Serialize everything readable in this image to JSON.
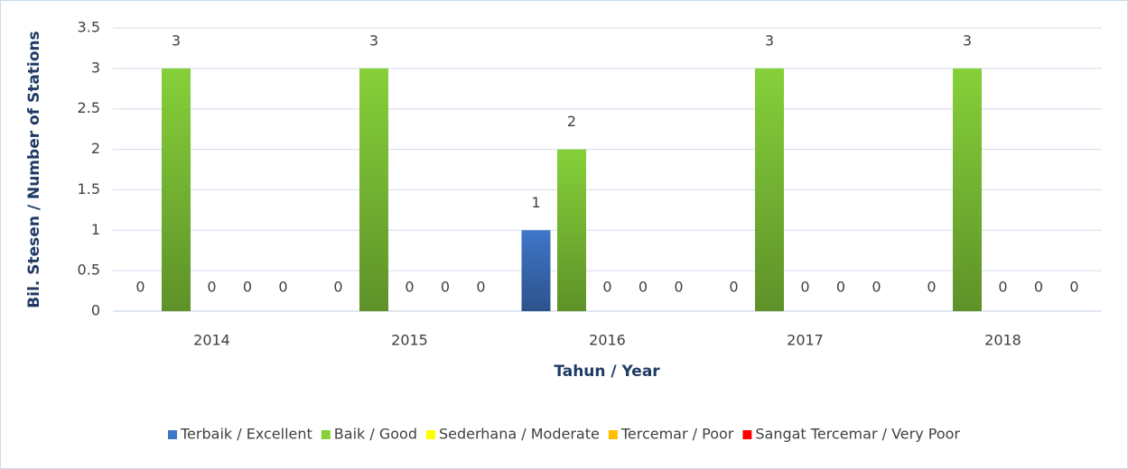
{
  "chart_data": {
    "type": "bar",
    "categories": [
      "2014",
      "2015",
      "2016",
      "2017",
      "2018"
    ],
    "series": [
      {
        "name": "Terbaik / Excellent",
        "color": "#3f76c8",
        "values": [
          0,
          0,
          1,
          0,
          0
        ]
      },
      {
        "name": "Baik / Good",
        "color": "#86d03a",
        "values": [
          3,
          3,
          2,
          3,
          3
        ]
      },
      {
        "name": "Sederhana / Moderate",
        "color": "#ffff00",
        "values": [
          0,
          0,
          0,
          0,
          0
        ]
      },
      {
        "name": "Tercemar / Poor",
        "color": "#ffc000",
        "values": [
          0,
          0,
          0,
          0,
          0
        ]
      },
      {
        "name": "Sangat Tercemar / Very Poor",
        "color": "#ff0000",
        "values": [
          0,
          0,
          0,
          0,
          0
        ]
      }
    ],
    "ylim": [
      0,
      3.5
    ],
    "yticks": [
      0,
      0.5,
      1,
      1.5,
      2,
      2.5,
      3,
      3.5
    ],
    "xlabel": "Tahun / Year",
    "ylabel": "Bil. Stesen /  Number of Stations",
    "grid": true,
    "legend": "bottom"
  }
}
